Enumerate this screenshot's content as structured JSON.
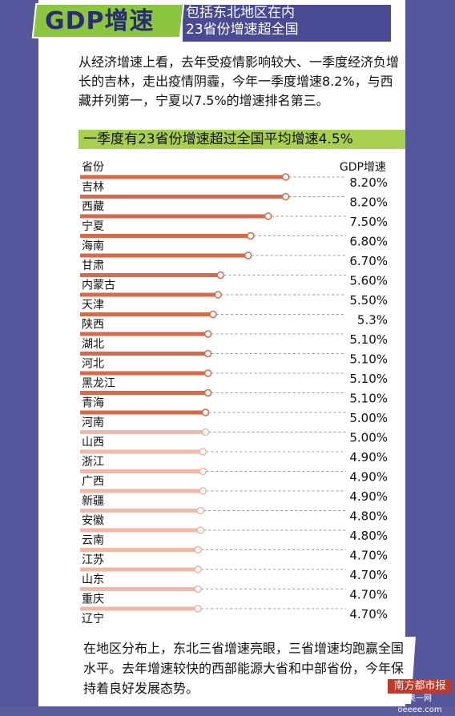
{
  "header": {
    "title": "GDP增速",
    "subtitle_line1": "包括东北地区在内",
    "subtitle_line2": "23省份增速超全国"
  },
  "intro": "从经济增速上看，去年受疫情影响较大、一季度经济负增长的吉林，走出疫情阴霾，今年一季度增速8.2%，与西藏并列第一，宁夏以7.5%的增速排名第三。",
  "highlight": "一季度有23省份增速超过全国平均增速4.5%",
  "footer": "在地区分布上，东北三省增速亮眼，三省增速均跑赢全国水平。去年增速较快的西部能源大省和中部省份，今年保持着良好发展态势。",
  "logo": {
    "name": "南方都市报",
    "site": "奥一网oeeee.com"
  },
  "chart_data": {
    "type": "bar",
    "column_left": "省份",
    "column_right": "GDP增速",
    "categories": [
      "吉林",
      "西藏",
      "宁夏",
      "海南",
      "甘肃",
      "内蒙古",
      "天津",
      "陕西",
      "湖北",
      "河北",
      "黑龙江",
      "青海",
      "河南",
      "山西",
      "浙江",
      "广西",
      "新疆",
      "安徽",
      "云南",
      "江苏",
      "山东",
      "重庆",
      "辽宁"
    ],
    "values": [
      8.2,
      8.2,
      7.5,
      6.8,
      6.7,
      5.6,
      5.5,
      5.3,
      5.1,
      5.1,
      5.1,
      5.1,
      5.0,
      5.0,
      4.9,
      4.9,
      4.9,
      4.8,
      4.8,
      4.7,
      4.7,
      4.7,
      4.7
    ],
    "value_labels": [
      "8.20%",
      "8.20%",
      "7.50%",
      "6.80%",
      "6.70%",
      "5.60%",
      "5.50%",
      "5.3%",
      "5.10%",
      "5.10%",
      "5.10%",
      "5.10%",
      "5.00%",
      "5.00%",
      "4.90%",
      "4.90%",
      "4.90%",
      "4.80%",
      "4.80%",
      "4.70%",
      "4.70%",
      "4.70%",
      "4.70%"
    ],
    "colors": {
      "dark": "#d86a4a",
      "light": "#f2b7a6"
    },
    "dark_count": 13
  }
}
